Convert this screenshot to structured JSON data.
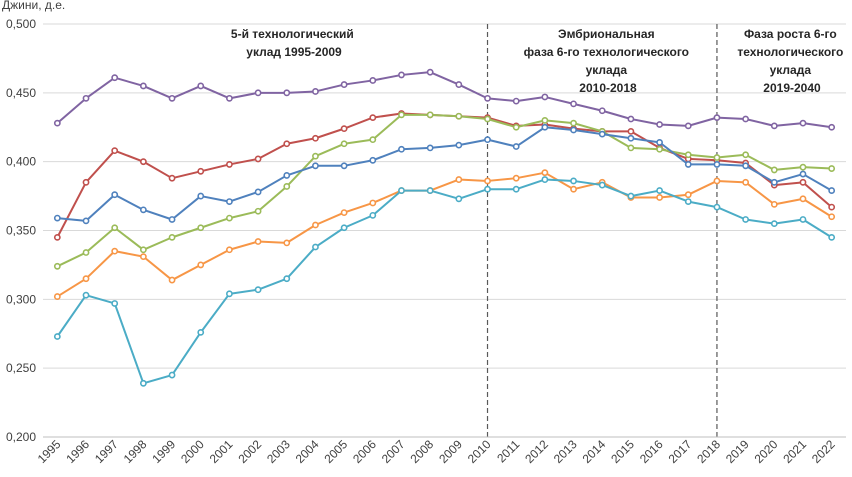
{
  "chart_data": {
    "type": "line",
    "ylabel": "Джини, д.е.",
    "ylim": [
      0.2,
      0.5
    ],
    "ytick_step": 0.05,
    "ytick_labels": [
      "0,200",
      "0,250",
      "0,300",
      "0,350",
      "0,400",
      "0,450",
      "0,500"
    ],
    "x": [
      "1995",
      "1996",
      "1997",
      "1998",
      "1999",
      "2000",
      "2001",
      "2002",
      "2003",
      "2004",
      "2005",
      "2006",
      "2007",
      "2008",
      "2009",
      "2010",
      "2011",
      "2012",
      "2013",
      "2014",
      "2015",
      "2016",
      "2017",
      "2018",
      "2019",
      "2020",
      "2021",
      "2022"
    ],
    "phase_dividers": [
      "2010",
      "2018"
    ],
    "annotations": [
      {
        "lines": [
          "5-й технологический",
          "уклад 1995-2009"
        ]
      },
      {
        "lines": [
          "Эмбриональная",
          "фаза 6-го технологического",
          "уклада",
          "2010-2018"
        ]
      },
      {
        "lines": [
          "Фаза роста 6-го",
          "технологического",
          "уклада",
          "2019-2040"
        ]
      }
    ],
    "series": [
      {
        "name": "purple",
        "color": "#8064A2",
        "values": [
          0.428,
          0.446,
          0.461,
          0.455,
          0.446,
          0.455,
          0.446,
          0.45,
          0.45,
          0.451,
          0.456,
          0.459,
          0.463,
          0.465,
          0.456,
          0.446,
          0.444,
          0.447,
          0.442,
          0.437,
          0.431,
          0.427,
          0.426,
          0.432,
          0.431,
          0.426,
          0.428,
          0.425
        ]
      },
      {
        "name": "red",
        "color": "#C0504D",
        "values": [
          0.345,
          0.385,
          0.408,
          0.4,
          0.388,
          0.393,
          0.398,
          0.402,
          0.413,
          0.417,
          0.424,
          0.432,
          0.435,
          0.434,
          0.433,
          0.432,
          0.426,
          0.427,
          0.424,
          0.422,
          0.422,
          0.41,
          0.402,
          0.401,
          0.399,
          0.383,
          0.385,
          0.367
        ]
      },
      {
        "name": "green",
        "color": "#9BBB59",
        "values": [
          0.324,
          0.334,
          0.352,
          0.336,
          0.345,
          0.352,
          0.359,
          0.364,
          0.382,
          0.404,
          0.413,
          0.416,
          0.434,
          0.434,
          0.433,
          0.431,
          0.425,
          0.43,
          0.428,
          0.422,
          0.41,
          0.409,
          0.405,
          0.403,
          0.405,
          0.394,
          0.396,
          0.395
        ]
      },
      {
        "name": "blue",
        "color": "#4F81BD",
        "values": [
          0.359,
          0.357,
          0.376,
          0.365,
          0.358,
          0.375,
          0.371,
          0.378,
          0.39,
          0.397,
          0.397,
          0.401,
          0.409,
          0.41,
          0.412,
          0.416,
          0.411,
          0.425,
          0.423,
          0.42,
          0.417,
          0.414,
          0.398,
          0.398,
          0.397,
          0.385,
          0.391,
          0.379
        ]
      },
      {
        "name": "orange",
        "color": "#F79646",
        "values": [
          0.302,
          0.315,
          0.335,
          0.331,
          0.314,
          0.325,
          0.336,
          0.342,
          0.341,
          0.354,
          0.363,
          0.37,
          0.379,
          0.379,
          0.387,
          0.386,
          0.388,
          0.392,
          0.38,
          0.385,
          0.374,
          0.374,
          0.376,
          0.386,
          0.385,
          0.369,
          0.373,
          0.36
        ]
      },
      {
        "name": "teal",
        "color": "#4BACC6",
        "values": [
          0.273,
          0.303,
          0.297,
          0.239,
          0.245,
          0.276,
          0.304,
          0.307,
          0.315,
          0.338,
          0.352,
          0.361,
          0.379,
          0.379,
          0.373,
          0.38,
          0.38,
          0.387,
          0.386,
          0.383,
          0.375,
          0.379,
          0.371,
          0.367,
          0.358,
          0.355,
          0.358,
          0.345
        ]
      }
    ]
  }
}
